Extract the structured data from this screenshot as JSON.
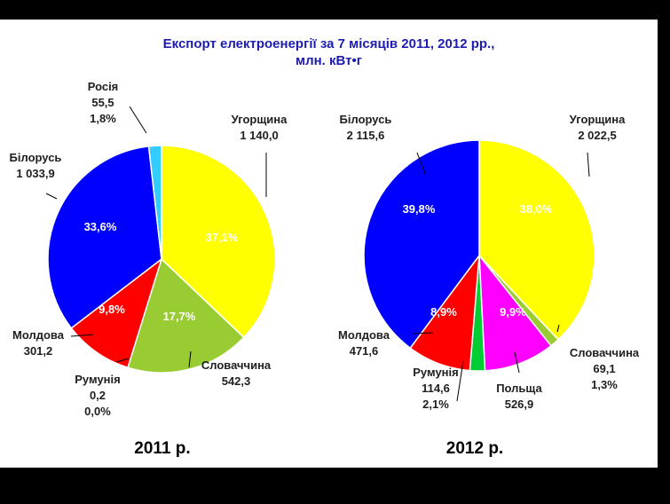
{
  "title_line1": "Експорт електроенергії за 7 місяців 2011, 2012 рр.,",
  "title_line2": "млн. кВт•г",
  "chart_data": [
    {
      "type": "pie",
      "title": "2011 р.",
      "slices": [
        {
          "name": "Угорщина",
          "value": "1 140,0",
          "percent": 37.1,
          "percent_label": "37,1%",
          "color": "#ffff00"
        },
        {
          "name": "Словаччина",
          "value": "542,3",
          "percent": 17.7,
          "percent_label": "17,7%",
          "color": "#99cc33"
        },
        {
          "name": "Румунія",
          "value": "0,2",
          "percent": 0.0,
          "percent_label": "0,0%",
          "color": "#ffffff"
        },
        {
          "name": "Молдова",
          "value": "301,2",
          "percent": 9.8,
          "percent_label": "9,8%",
          "color": "#ff0000"
        },
        {
          "name": "Білорусь",
          "value": "1 033,9",
          "percent": 33.6,
          "percent_label": "33,6%",
          "color": "#0000ff"
        },
        {
          "name": "Росія",
          "value": "55,5",
          "percent": 1.8,
          "percent_label": "1,8%",
          "color": "#33ccff"
        }
      ]
    },
    {
      "type": "pie",
      "title": "2012 р.",
      "slices": [
        {
          "name": "Угорщина",
          "value": "2 022,5",
          "percent": 38.0,
          "percent_label": "38,0%",
          "color": "#ffff00"
        },
        {
          "name": "Словаччина",
          "value": "69,1",
          "percent": 1.3,
          "percent_label": "1,3%",
          "color": "#99cc33"
        },
        {
          "name": "Польща",
          "value": "526,9",
          "percent": 9.9,
          "percent_label": "9,9%",
          "color": "#ff00ff"
        },
        {
          "name": "Румунія",
          "value": "114,6",
          "percent": 2.1,
          "percent_label": "2,1%",
          "color": "#00cc33"
        },
        {
          "name": "Молдова",
          "value": "471,6",
          "percent": 8.9,
          "percent_label": "8,9%",
          "color": "#ff0000"
        },
        {
          "name": "Білорусь",
          "value": "2 115,6",
          "percent": 39.8,
          "percent_label": "39,8%",
          "color": "#0000ff"
        }
      ]
    }
  ]
}
